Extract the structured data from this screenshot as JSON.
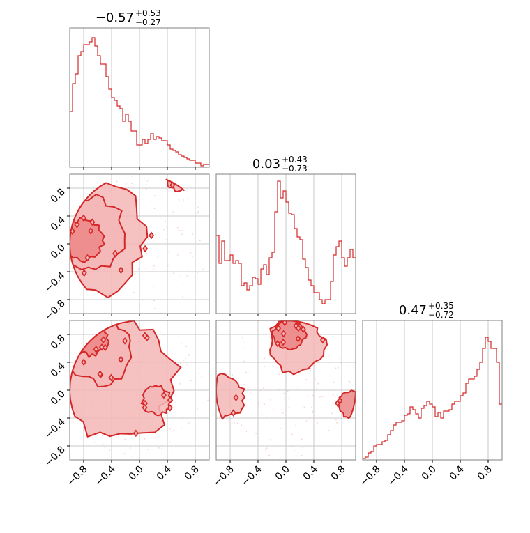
{
  "colors": {
    "accent": "#d62728",
    "fill_light": "#f4b6b6",
    "fill_mid": "#ec8686",
    "frame": "#808080",
    "grid": "#c8c8c8"
  },
  "chart_data": {
    "type": "corner",
    "series": [
      {
        "name": "",
        "median": "0.57",
        "sign": "−",
        "plus": "+0.53",
        "minus": "−0.27"
      },
      {
        "name": "",
        "median": "0.03",
        "sign": "",
        "plus": "+0.43",
        "minus": "−0.73"
      },
      {
        "name": "",
        "median": "0.47",
        "sign": "",
        "plus": "+0.35",
        "minus": "−0.72"
      }
    ],
    "titles": [
      {
        "median": "−0.57",
        "plus": "+0.53",
        "minus": "−0.27"
      },
      {
        "median": "0.03",
        "plus": "+0.43",
        "minus": "−0.73"
      },
      {
        "median": "0.47",
        "plus": "+0.35",
        "minus": "−0.72"
      }
    ],
    "axis_range": [
      -1,
      1
    ],
    "tick_values": [
      -0.8,
      -0.4,
      0.0,
      0.4,
      0.8
    ],
    "tick_labels": [
      "−0.8",
      "−0.4",
      "0.0",
      "0.4",
      "0.8"
    ],
    "grid": true,
    "histograms": [
      {
        "bins": 50,
        "counts": [
          0.4,
          0.6,
          0.67,
          0.8,
          0.83,
          0.88,
          0.88,
          0.9,
          0.93,
          0.87,
          0.8,
          0.74,
          0.74,
          0.65,
          0.56,
          0.5,
          0.48,
          0.44,
          0.42,
          0.33,
          0.38,
          0.33,
          0.26,
          0.26,
          0.16,
          0.16,
          0.2,
          0.17,
          0.2,
          0.24,
          0.2,
          0.22,
          0.21,
          0.19,
          0.19,
          0.16,
          0.13,
          0.12,
          0.11,
          0.09,
          0.08,
          0.07,
          0.06,
          0.05,
          0.05,
          0.03,
          0.03,
          0.01,
          0.02,
          0.02
        ]
      },
      {
        "bins": 50,
        "counts": [
          0.56,
          0.36,
          0.52,
          0.38,
          0.38,
          0.42,
          0.36,
          0.38,
          0.36,
          0.2,
          0.22,
          0.17,
          0.2,
          0.26,
          0.25,
          0.21,
          0.32,
          0.35,
          0.28,
          0.4,
          0.44,
          0.73,
          0.95,
          0.83,
          0.88,
          0.8,
          0.72,
          0.71,
          0.61,
          0.55,
          0.53,
          0.39,
          0.33,
          0.24,
          0.2,
          0.15,
          0.15,
          0.1,
          0.07,
          0.1,
          0.1,
          0.23,
          0.42,
          0.48,
          0.52,
          0.4,
          0.34,
          0.4,
          0.46,
          0.4
        ]
      },
      {
        "bins": 50,
        "counts": [
          0.01,
          0.02,
          0.05,
          0.06,
          0.1,
          0.11,
          0.11,
          0.13,
          0.14,
          0.18,
          0.21,
          0.25,
          0.27,
          0.27,
          0.28,
          0.32,
          0.33,
          0.38,
          0.36,
          0.33,
          0.3,
          0.37,
          0.39,
          0.42,
          0.4,
          0.38,
          0.31,
          0.34,
          0.3,
          0.35,
          0.35,
          0.36,
          0.4,
          0.42,
          0.42,
          0.46,
          0.48,
          0.55,
          0.58,
          0.58,
          0.6,
          0.65,
          0.7,
          0.8,
          0.88,
          0.85,
          0.8,
          0.8,
          0.7,
          0.4
        ]
      }
    ],
    "densities": [
      {
        "panel": "row2-col1",
        "regions": [
          {
            "cx": -0.82,
            "cy": 0.05,
            "r": 0.3,
            "level": 3
          },
          {
            "cx": -0.78,
            "cy": 0.15,
            "r": 0.55,
            "level": 2
          },
          {
            "cx": -0.7,
            "cy": 0.1,
            "r": 0.8,
            "level": 1
          },
          {
            "cx": 0.55,
            "cy": 0.92,
            "r": 0.15,
            "level": 1
          }
        ],
        "clip_circle": 1.0
      },
      {
        "panel": "row3-col1",
        "regions": [
          {
            "cx": -0.7,
            "cy": 0.75,
            "r": 0.25,
            "level": 3
          },
          {
            "cx": -0.55,
            "cy": 0.55,
            "r": 0.45,
            "level": 2
          },
          {
            "cx": -0.35,
            "cy": 0.15,
            "r": 0.85,
            "level": 1
          },
          {
            "cx": 0.25,
            "cy": -0.15,
            "r": 0.2,
            "level": 2
          }
        ],
        "clip_circle": 1.0
      },
      {
        "panel": "row3-col2",
        "regions": [
          {
            "cx": 0.05,
            "cy": 0.8,
            "r": 0.22,
            "level": 3
          },
          {
            "cx": 0.15,
            "cy": 0.65,
            "r": 0.4,
            "level": 2
          },
          {
            "cx": -0.9,
            "cy": -0.1,
            "r": 0.3,
            "level": 2
          },
          {
            "cx": 0.92,
            "cy": -0.2,
            "r": 0.18,
            "level": 3
          }
        ],
        "clip_circle": 1.0
      }
    ]
  }
}
